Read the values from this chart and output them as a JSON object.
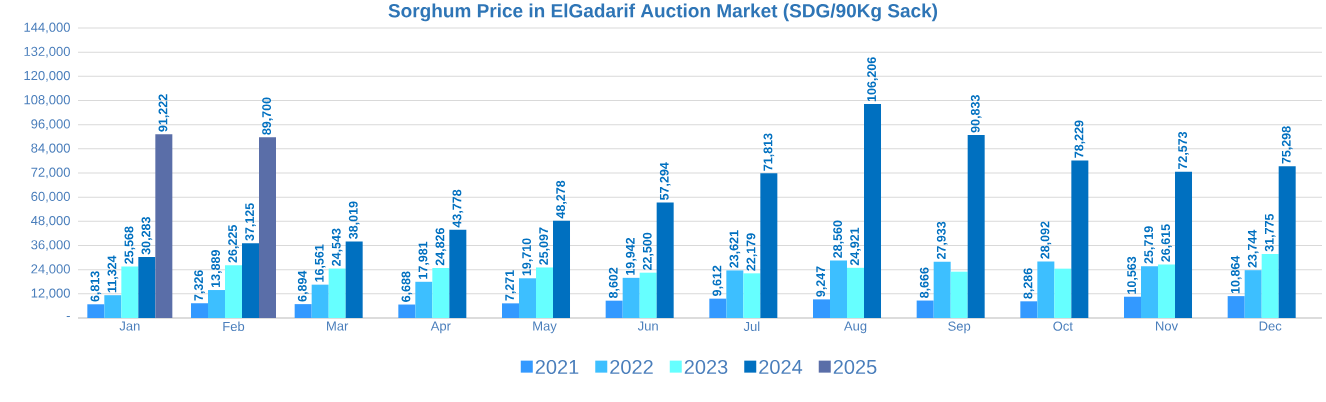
{
  "chart_data": {
    "type": "bar",
    "title": "Sorghum Price in ElGadarif Auction Market (SDG/90Kg Sack)",
    "categories": [
      "Jan",
      "Feb",
      "Mar",
      "Apr",
      "May",
      "Jun",
      "Jul",
      "Aug",
      "Sep",
      "Oct",
      "Nov",
      "Dec"
    ],
    "series": [
      {
        "name": "2021",
        "color": "#3399ff",
        "values": [
          6813,
          7326,
          6894,
          6688,
          7271,
          8602,
          9612,
          9247,
          8666,
          8286,
          10563,
          10864
        ],
        "value_labels": [
          "6,813",
          "7,326",
          "6,894",
          "6,688",
          "7,271",
          "8,602",
          "9,612",
          "9,247",
          "8,666",
          "8,286",
          "10,563",
          "10,864"
        ]
      },
      {
        "name": "2022",
        "color": "#3dbfff",
        "values": [
          11324,
          13889,
          16561,
          17981,
          19710,
          19942,
          23621,
          28560,
          27933,
          28092,
          25719,
          23744
        ],
        "value_labels": [
          "11,324",
          "13,889",
          "16,561",
          "17,981",
          "19,710",
          "19,942",
          "23,621",
          "28,560",
          "27,933",
          "28,092",
          "25,719",
          "23,744"
        ]
      },
      {
        "name": "2023",
        "color": "#66ffff",
        "values": [
          25568,
          26225,
          24543,
          24826,
          25097,
          22500,
          22179,
          24921,
          23000,
          24500,
          26615,
          31775
        ],
        "value_labels": [
          "25,568",
          "26,225",
          "24,543",
          "24,826",
          "25,097",
          "22,500",
          "22,179",
          "24,921",
          null,
          null,
          "26,615",
          "31,775"
        ]
      },
      {
        "name": "2024",
        "color": "#0070c0",
        "values": [
          30283,
          37125,
          38019,
          43778,
          48278,
          57294,
          71813,
          106206,
          90833,
          78229,
          72573,
          75298
        ],
        "value_labels": [
          "30,283",
          "37,125",
          "38,019",
          "43,778",
          "48,278",
          "57,294",
          "71,813",
          "106,206",
          "90,833",
          "78,229",
          "72,573",
          "75,298"
        ]
      },
      {
        "name": "2025",
        "color": "#5a6ea8",
        "values": [
          91222,
          89700,
          null,
          null,
          null,
          null,
          null,
          null,
          null,
          null,
          null,
          null
        ],
        "value_labels": [
          "91,222",
          "89,700",
          null,
          null,
          null,
          null,
          null,
          null,
          null,
          null,
          null,
          null
        ]
      }
    ],
    "ylim": [
      0,
      144000
    ],
    "yticks": [
      {
        "value": 0,
        "label": "-"
      },
      {
        "value": 12000,
        "label": "12,000"
      },
      {
        "value": 24000,
        "label": "24,000"
      },
      {
        "value": 36000,
        "label": "36,000"
      },
      {
        "value": 48000,
        "label": "48,000"
      },
      {
        "value": 60000,
        "label": "60,000"
      },
      {
        "value": 72000,
        "label": "72,000"
      },
      {
        "value": 84000,
        "label": "84,000"
      },
      {
        "value": 96000,
        "label": "96,000"
      },
      {
        "value": 108000,
        "label": "108,000"
      },
      {
        "value": 120000,
        "label": "120,000"
      },
      {
        "value": 132000,
        "label": "132,000"
      },
      {
        "value": 144000,
        "label": "144,000"
      }
    ],
    "grid": "y",
    "legend": "bottom"
  }
}
